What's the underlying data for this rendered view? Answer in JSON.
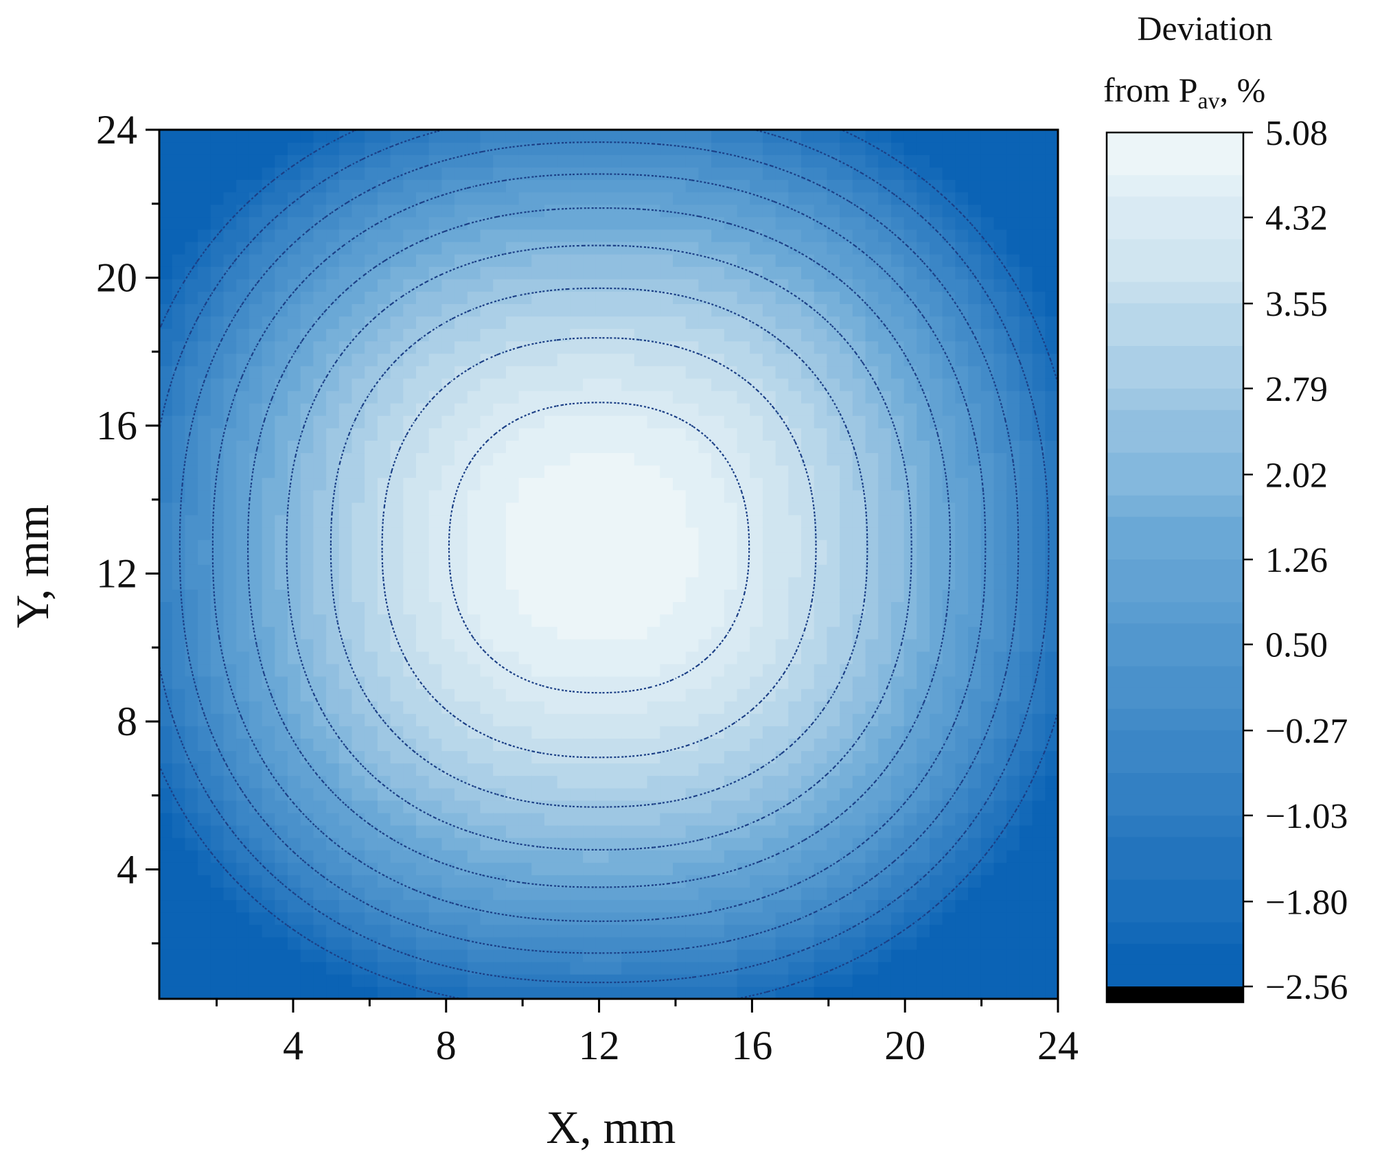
{
  "chart_data": {
    "type": "heatmap",
    "title": "",
    "xlabel": "X, mm",
    "ylabel": "Y, mm",
    "xlim": [
      0.5,
      24
    ],
    "ylim": [
      0.5,
      24
    ],
    "xticks": [
      4,
      8,
      12,
      16,
      20,
      24
    ],
    "yticks": [
      4,
      8,
      12,
      16,
      20,
      24
    ],
    "xtick_labels": [
      "4",
      "8",
      "12",
      "16",
      "20",
      "24"
    ],
    "ytick_labels": [
      "4",
      "8",
      "12",
      "16",
      "20",
      "24"
    ],
    "grid": false,
    "colorbar": {
      "title_line1": "Deviation",
      "title_line2_main": "from P",
      "title_line2_sub": "av",
      "title_line2_end": ", %",
      "ticks": [
        5.08,
        4.32,
        3.55,
        2.79,
        2.02,
        1.26,
        0.5,
        -0.27,
        -1.03,
        -1.8,
        -2.56
      ],
      "tick_labels": [
        "5.08",
        "4.32",
        "3.55",
        "2.79",
        "2.02",
        "1.26",
        "0.50",
        "−0.27",
        "−1.03",
        "−1.80",
        "−2.56"
      ],
      "min": -2.56,
      "max": 5.08,
      "colors": {
        "low": "#0b63b5",
        "mid": "#6aa8d6",
        "high": "#f5fbfb",
        "under": "#000000",
        "contour": "#1b3f86"
      }
    },
    "field": {
      "description_peak_x": 12.0,
      "description_peak_y": 12.7,
      "peak_value": 5.08,
      "corner_value": -2.56
    },
    "contour_levels": [
      -1.8,
      -1.03,
      -0.27,
      0.5,
      1.26,
      2.02,
      2.79,
      3.55,
      4.32
    ]
  }
}
